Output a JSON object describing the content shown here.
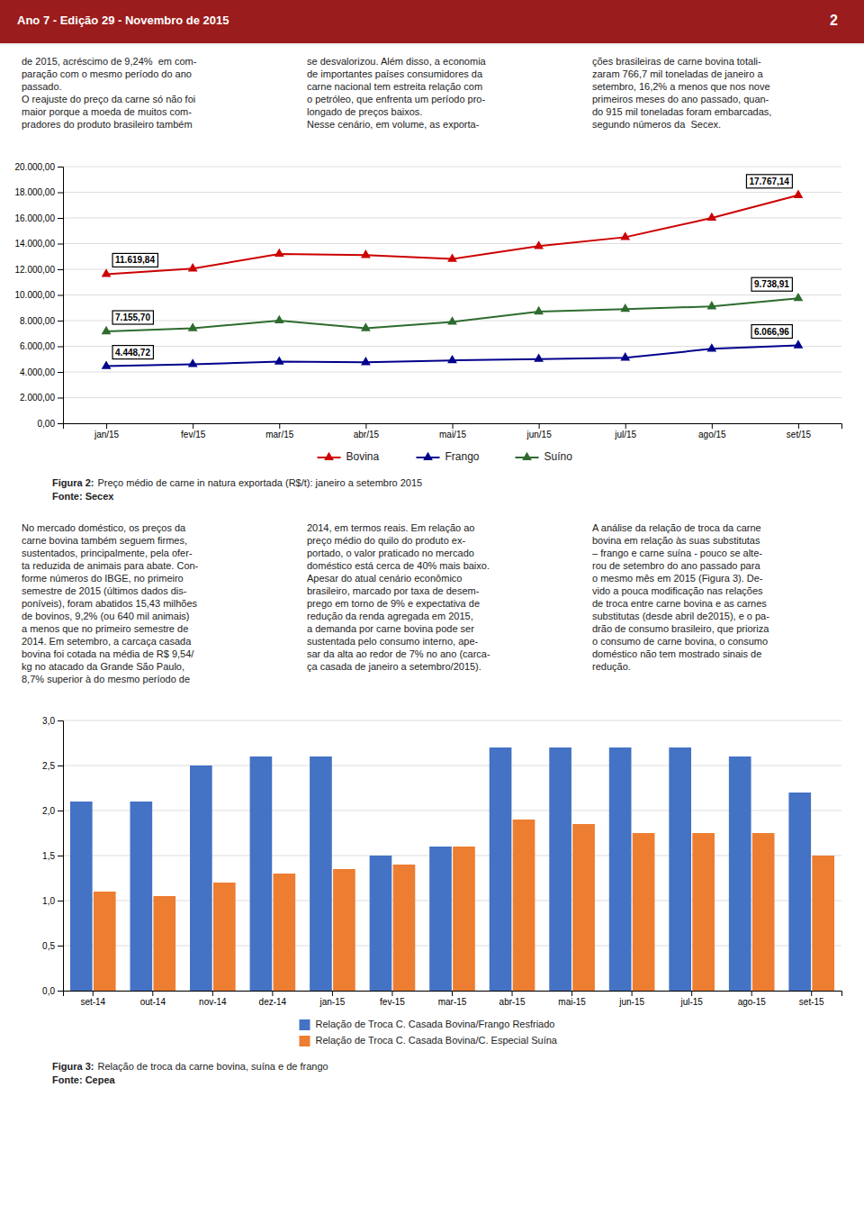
{
  "page": {
    "header": "Ano 7 - Edição 29 - Novembro de 2015",
    "header_color": "#9b1c1c",
    "background": "#f0f0f0",
    "page_number": "2",
    "columns_top": [
      "de 2015, acréscimo de 9,24%  em com-\nparação com o mesmo período do ano\npassado.\n\nO reajuste do preço da carne só não foi\nmaior porque a moeda de muitos com-\npradores do produto brasileiro também",
      "se desvalorizou. Além disso, a economia\nde importantes países consumidores da\ncarne nacional tem estreita relação com\no petróleo, que enfrenta um período pro-\nlongado de preços baixos.\n\nNesse cenário, em volume, as exporta-",
      "ções brasileiras de carne bovina totali-\nzaram 766,7 mil toneladas de janeiro a\nsetembro, 16,2% a menos que nos nove\nprimeiros meses do ano passado, quan-\ndo 915 mil toneladas foram embarcadas,\nsegundo números da  Secex."
    ],
    "columns_middle": [
      "No mercado doméstico, os preços da\ncarne bovina também seguem firmes,\nsustentados, principalmente, pela ofer-\nta reduzida de animais para abate. Con-\nforme números do IBGE, no primeiro\nsemestre de 2015 (últimos dados dis-\nponíveis), foram abatidos 15,43 milhões\nde bovinos, 9,2% (ou 640 mil animais)\na menos que no primeiro semestre de\n2014. Em setembro, a carcaça casada\nbovina foi cotada na média de R$ 9,54/\nkg no atacado da Grande São Paulo,\n8,7% superior à do mesmo período de",
      "2014, em termos reais. Em relação ao\npreço médio do quilo do produto ex-\nportado, o valor praticado no mercado\ndoméstico está cerca de 40% mais baixo.\n\nApesar do atual cenário econômico\nbrasileiro, marcado por taxa de desem-\nprego em torno de 9% e expectativa de\nredução da renda agregada em 2015,\na demanda por carne bovina pode ser\nsustentada pelo consumo interno, ape-\nsar da alta ao redor de 7% no ano (carca-\nça casada de janeiro a setembro/2015).",
      "A análise da relação de troca da carne\nbovina em relação às suas substitutas\n– frango e carne suína - pouco se alte-\nrou de setembro do ano passado para\no mesmo mês em 2015 (Figura 3). De-\nvido a pouca modificação nas relações\nde troca entre carne bovina e as carnes\nsubstitutas (desde abril de2015), e o pa-\ndrão de consumo brasileiro, que prioriza\no consumo de carne bovina, o consumo\ndoméstico não tem mostrado sinais de\nredução."
    ]
  },
  "chart_data": [
    {
      "type": "line",
      "caption_label": "Figura 2:",
      "caption": "Preço médio de carne in natura exportada (R$/t): janeiro a setembro 2015",
      "source": "Fonte: Secex",
      "categories": [
        "jan/15",
        "fev/15",
        "mar/15",
        "abr/15",
        "mai/15",
        "jun/15",
        "jul/15",
        "ago/15",
        "set/15"
      ],
      "series": [
        {
          "name": "Bovina",
          "color": "#cc0000",
          "marker": "triangle",
          "values": [
            11619.84,
            12050,
            13200,
            13100,
            12800,
            13800,
            14500,
            16000,
            17767.14
          ],
          "value_labels": [
            "11.619,84",
            null,
            null,
            null,
            null,
            null,
            null,
            null,
            "17.767,14"
          ]
        },
        {
          "name": "Frango",
          "color": "#00008b",
          "marker": "triangle",
          "values": [
            4448.72,
            4600,
            4800,
            4750,
            4900,
            5000,
            5100,
            5800,
            6066.96
          ],
          "value_labels": [
            "4.448,72",
            null,
            null,
            null,
            null,
            null,
            null,
            null,
            "6.066,96"
          ]
        },
        {
          "name": "Suíno",
          "color": "#2e6b2e",
          "marker": "triangle",
          "values": [
            7155.7,
            7400,
            8000,
            7400,
            7900,
            8700,
            8900,
            9100,
            9738.91
          ],
          "value_labels": [
            "7.155,70",
            null,
            null,
            null,
            null,
            null,
            null,
            null,
            "9.738,91"
          ]
        }
      ],
      "ylim": [
        0,
        20000
      ],
      "yticks": [
        {
          "value": 0,
          "label": "0,00"
        },
        {
          "value": 2000,
          "label": "2.000,00"
        },
        {
          "value": 4000,
          "label": "4.000,00"
        },
        {
          "value": 6000,
          "label": "6.000,00"
        },
        {
          "value": 8000,
          "label": "8.000,00"
        },
        {
          "value": 10000,
          "label": "10.000,00"
        },
        {
          "value": 12000,
          "label": "12.000,00"
        },
        {
          "value": 14000,
          "label": "14.000,00"
        },
        {
          "value": 16000,
          "label": "16.000,00"
        },
        {
          "value": 18000,
          "label": "18.000,00"
        },
        {
          "value": 20000,
          "label": "20.000,00"
        }
      ],
      "grid": true,
      "legend": "bottom",
      "data_labels": true
    },
    {
      "type": "bar",
      "caption_label": "Figura 3:",
      "caption": "Relação de troca da carne bovina, suína e de frango",
      "source": "Fonte: Cepea",
      "categories": [
        "set-14",
        "out-14",
        "nov-14",
        "dez-14",
        "jan-15",
        "fev-15",
        "mar-15",
        "abr-15",
        "mai-15",
        "jun-15",
        "jul-15",
        "ago-15",
        "set-15"
      ],
      "series": [
        {
          "name": "Relação de Troca C. Casada Bovina/Frango Resfriado",
          "color": "#4472c4",
          "values": [
            2.1,
            2.1,
            2.5,
            2.6,
            2.6,
            1.5,
            1.6,
            2.7,
            2.7,
            2.7,
            2.7,
            2.6,
            2.2
          ]
        },
        {
          "name": "Relação de Troca C. Casada Bovina/C. Especial Suína",
          "color": "#ed7d31",
          "values": [
            1.1,
            1.05,
            1.2,
            1.3,
            1.35,
            1.4,
            1.6,
            1.9,
            1.85,
            1.75,
            1.75,
            1.75,
            1.5
          ]
        }
      ],
      "ylim": [
        0,
        3
      ],
      "yticks": [
        {
          "value": 0,
          "label": "0,0"
        },
        {
          "value": 0.5,
          "label": "0,5"
        },
        {
          "value": 1.0,
          "label": "1,0"
        },
        {
          "value": 1.5,
          "label": "1,5"
        },
        {
          "value": 2.0,
          "label": "2,0"
        },
        {
          "value": 2.5,
          "label": "2,5"
        },
        {
          "value": 3.0,
          "label": "3,0"
        }
      ],
      "grid": true,
      "legend": "bottom"
    }
  ]
}
